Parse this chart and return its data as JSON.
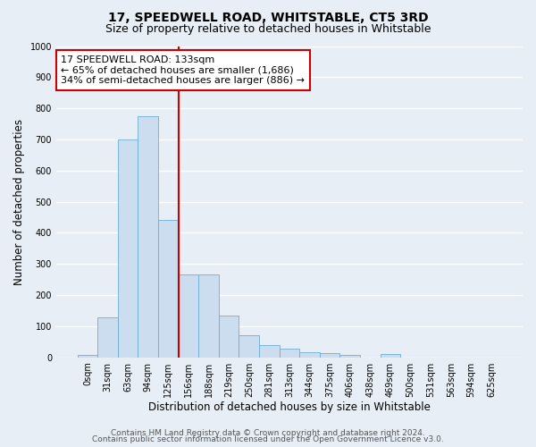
{
  "title1": "17, SPEEDWELL ROAD, WHITSTABLE, CT5 3RD",
  "title2": "Size of property relative to detached houses in Whitstable",
  "xlabel": "Distribution of detached houses by size in Whitstable",
  "ylabel": "Number of detached properties",
  "categories": [
    "0sqm",
    "31sqm",
    "63sqm",
    "94sqm",
    "125sqm",
    "156sqm",
    "188sqm",
    "219sqm",
    "250sqm",
    "281sqm",
    "313sqm",
    "344sqm",
    "375sqm",
    "406sqm",
    "438sqm",
    "469sqm",
    "500sqm",
    "531sqm",
    "563sqm",
    "594sqm",
    "625sqm"
  ],
  "values": [
    8,
    128,
    700,
    775,
    440,
    265,
    265,
    133,
    70,
    40,
    27,
    15,
    13,
    8,
    0,
    10,
    0,
    0,
    0,
    0,
    0
  ],
  "bar_color": "#ccddf0",
  "bar_edge_color": "#6baed6",
  "bg_color": "#e8eef5",
  "grid_color": "#ffffff",
  "vline_color": "#cc0000",
  "annotation_line1": "17 SPEEDWELL ROAD: 133sqm",
  "annotation_line2": "← 65% of detached houses are smaller (1,686)",
  "annotation_line3": "34% of semi-detached houses are larger (886) →",
  "annotation_box_color": "#ffffff",
  "annotation_box_edge": "#cc0000",
  "ylim": [
    0,
    1000
  ],
  "yticks": [
    0,
    100,
    200,
    300,
    400,
    500,
    600,
    700,
    800,
    900,
    1000
  ],
  "footer1": "Contains HM Land Registry data © Crown copyright and database right 2024.",
  "footer2": "Contains public sector information licensed under the Open Government Licence v3.0.",
  "title1_fontsize": 10,
  "title2_fontsize": 9,
  "xlabel_fontsize": 8.5,
  "ylabel_fontsize": 8.5,
  "tick_fontsize": 7,
  "annotation_fontsize": 8,
  "footer_fontsize": 6.5
}
